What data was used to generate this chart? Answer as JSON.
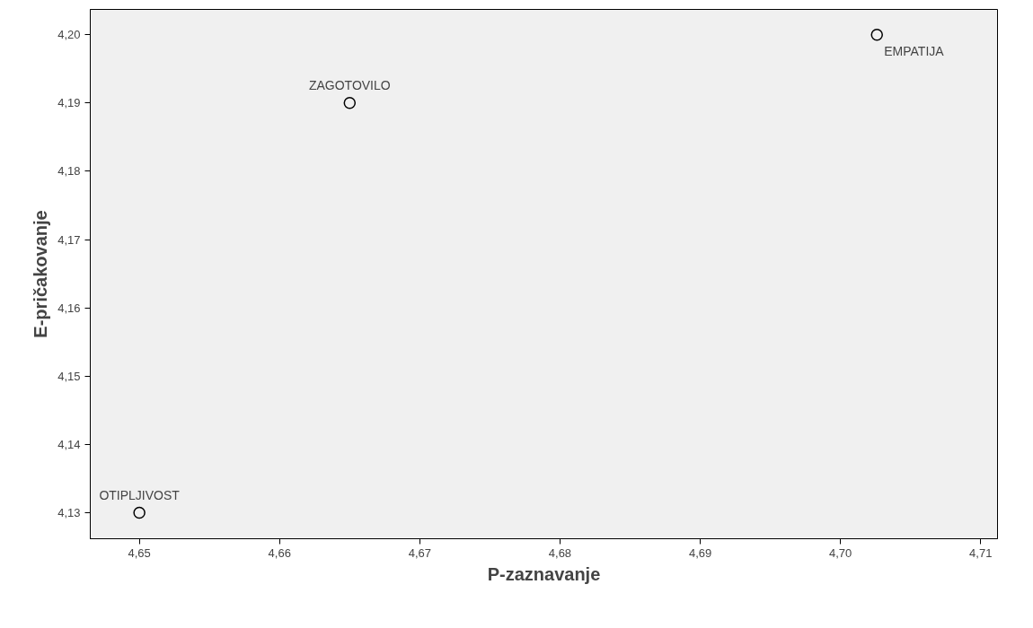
{
  "chart_data": {
    "type": "scatter",
    "xlabel": "P-zaznavanje",
    "ylabel": "E-pričakovanje",
    "x": [
      4.65,
      4.665,
      4.7026
    ],
    "values": [
      4.13,
      4.19,
      4.2
    ],
    "color": "#000000",
    "marker": "circle",
    "grid": false,
    "xlim": [
      4.6465,
      4.7112
    ],
    "ylim": [
      4.1262,
      4.2037
    ],
    "xticks": [
      {
        "value": 4.65,
        "label": "4,65"
      },
      {
        "value": 4.66,
        "label": "4,66"
      },
      {
        "value": 4.67,
        "label": "4,67"
      },
      {
        "value": 4.68,
        "label": "4,68"
      },
      {
        "value": 4.69,
        "label": "4,69"
      },
      {
        "value": 4.7,
        "label": "4,70"
      },
      {
        "value": 4.71,
        "label": "4,71"
      }
    ],
    "yticks": [
      {
        "value": 4.13,
        "label": "4,13"
      },
      {
        "value": 4.14,
        "label": "4,14"
      },
      {
        "value": 4.15,
        "label": "4,15"
      },
      {
        "value": 4.16,
        "label": "4,16"
      },
      {
        "value": 4.17,
        "label": "4,17"
      },
      {
        "value": 4.18,
        "label": "4,18"
      },
      {
        "value": 4.19,
        "label": "4,19"
      },
      {
        "value": 4.2,
        "label": "4,20"
      }
    ],
    "annotations": [
      {
        "text": "OTIPLJIVOST",
        "x": 4.65,
        "y": 4.13
      },
      {
        "text": "ZAGOTOVILO",
        "x": 4.665,
        "y": 4.19
      },
      {
        "text": "EMPATIJA",
        "x": 4.7026,
        "y": 4.2
      }
    ]
  }
}
